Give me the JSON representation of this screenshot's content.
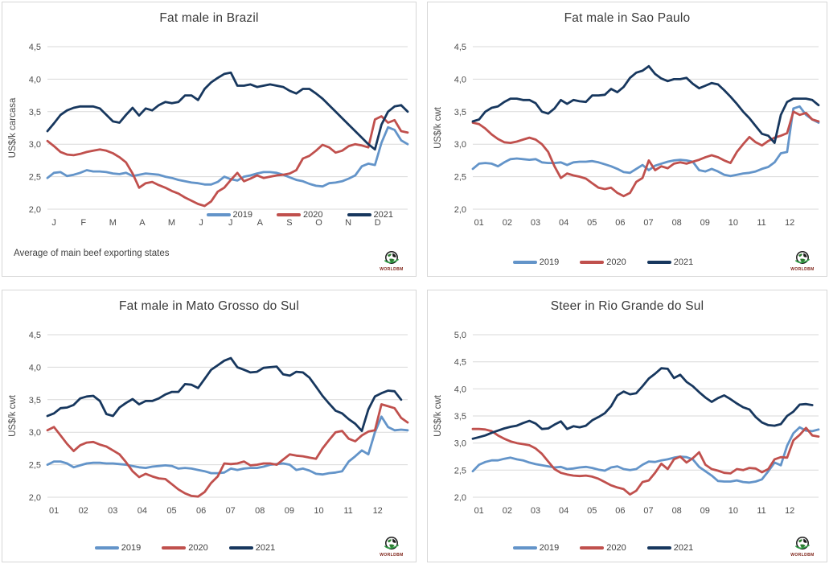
{
  "ui": {
    "logo_text": "WORLDBM"
  },
  "style": {
    "grid_color": "#d9d9d9",
    "axis_text_color": "#4d4d4d",
    "title_color": "#3a3a3a",
    "panel_border": "#d7d7d7",
    "series_colors": {
      "2019": "#6394C9",
      "2020": "#C0504D",
      "2021": "#17375E"
    }
  },
  "chart_data": [
    {
      "type": "line",
      "title": "Fat male in Brazil",
      "ylabel": "US$/k carcasa",
      "footnote": "Average of main beef exporting states",
      "y_min": 2.0,
      "y_max": 4.5,
      "grid": true,
      "legend_position": "inside-bottom-right",
      "y_ticks": [
        {
          "value": 4.5,
          "label": "4,5"
        },
        {
          "value": 4.0,
          "label": "4,0"
        },
        {
          "value": 3.5,
          "label": "3,5"
        },
        {
          "value": 3.0,
          "label": "3,0"
        },
        {
          "value": 2.5,
          "label": "2,5"
        },
        {
          "value": 2.0,
          "label": "2,0"
        }
      ],
      "x_labels": [
        "J",
        "F",
        "M",
        "A",
        "M",
        "J",
        "J",
        "A",
        "S",
        "O",
        "N",
        "D"
      ],
      "series": [
        {
          "name": "2019",
          "color": "#6394C9",
          "values": [
            2.48,
            2.56,
            2.57,
            2.51,
            2.53,
            2.56,
            2.6,
            2.58,
            2.58,
            2.57,
            2.55,
            2.54,
            2.56,
            2.51,
            2.53,
            2.55,
            2.54,
            2.53,
            2.5,
            2.48,
            2.45,
            2.43,
            2.41,
            2.4,
            2.38,
            2.38,
            2.42,
            2.5,
            2.46,
            2.44,
            2.5,
            2.52,
            2.55,
            2.57,
            2.57,
            2.56,
            2.53,
            2.49,
            2.45,
            2.43,
            2.39,
            2.36,
            2.35,
            2.4,
            2.41,
            2.43,
            2.47,
            2.52,
            2.66,
            2.7,
            2.68,
            3.02,
            3.26,
            3.22,
            3.06,
            3.0
          ]
        },
        {
          "name": "2020",
          "color": "#C0504D",
          "values": [
            3.05,
            2.97,
            2.88,
            2.84,
            2.83,
            2.85,
            2.88,
            2.9,
            2.92,
            2.9,
            2.86,
            2.8,
            2.72,
            2.55,
            2.33,
            2.4,
            2.42,
            2.37,
            2.33,
            2.28,
            2.24,
            2.18,
            2.13,
            2.08,
            2.05,
            2.12,
            2.27,
            2.33,
            2.45,
            2.56,
            2.43,
            2.47,
            2.52,
            2.48,
            2.5,
            2.52,
            2.53,
            2.55,
            2.6,
            2.78,
            2.82,
            2.9,
            2.99,
            2.95,
            2.87,
            2.9,
            2.97,
            3.0,
            2.98,
            2.95,
            3.38,
            3.43,
            3.33,
            3.37,
            3.2,
            3.18
          ]
        },
        {
          "name": "2021",
          "color": "#17375E",
          "values": [
            3.2,
            3.32,
            3.45,
            3.52,
            3.56,
            3.58,
            3.58,
            3.58,
            3.55,
            3.45,
            3.35,
            3.33,
            3.45,
            3.56,
            3.44,
            3.55,
            3.52,
            3.6,
            3.65,
            3.63,
            3.65,
            3.75,
            3.75,
            3.68,
            3.85,
            3.95,
            4.02,
            4.08,
            4.1,
            3.9,
            3.9,
            3.92,
            3.88,
            3.9,
            3.92,
            3.9,
            3.88,
            3.82,
            3.78,
            3.85,
            3.85,
            3.78,
            3.7,
            3.6,
            3.5,
            3.4,
            3.3,
            3.2,
            3.1,
            3.0,
            2.92,
            3.3,
            3.5,
            3.58,
            3.6,
            3.5
          ]
        }
      ]
    },
    {
      "type": "line",
      "title": "Fat male in Sao Paulo",
      "ylabel": "US$/k cwt",
      "footnote": "",
      "y_min": 2.0,
      "y_max": 4.5,
      "grid": true,
      "legend_position": "bottom-center",
      "y_ticks": [
        {
          "value": 4.5,
          "label": "4,5"
        },
        {
          "value": 4.0,
          "label": "4,0"
        },
        {
          "value": 3.5,
          "label": "3,5"
        },
        {
          "value": 3.0,
          "label": "3,0"
        },
        {
          "value": 2.5,
          "label": "2,5"
        },
        {
          "value": 2.0,
          "label": "2,0"
        }
      ],
      "x_labels": [
        "01",
        "02",
        "03",
        "04",
        "05",
        "06",
        "07",
        "08",
        "09",
        "10",
        "11",
        "12"
      ],
      "series": [
        {
          "name": "2019",
          "color": "#6394C9",
          "values": [
            2.62,
            2.7,
            2.71,
            2.7,
            2.66,
            2.72,
            2.77,
            2.78,
            2.77,
            2.76,
            2.77,
            2.72,
            2.71,
            2.71,
            2.72,
            2.68,
            2.72,
            2.73,
            2.73,
            2.74,
            2.72,
            2.69,
            2.66,
            2.62,
            2.57,
            2.56,
            2.62,
            2.68,
            2.6,
            2.67,
            2.7,
            2.73,
            2.75,
            2.76,
            2.75,
            2.73,
            2.6,
            2.58,
            2.62,
            2.58,
            2.53,
            2.51,
            2.53,
            2.55,
            2.56,
            2.58,
            2.62,
            2.65,
            2.72,
            2.86,
            2.88,
            3.55,
            3.58,
            3.45,
            3.38,
            3.33
          ]
        },
        {
          "name": "2020",
          "color": "#C0504D",
          "values": [
            3.33,
            3.31,
            3.24,
            3.15,
            3.08,
            3.03,
            3.02,
            3.04,
            3.07,
            3.1,
            3.07,
            3.0,
            2.88,
            2.66,
            2.48,
            2.55,
            2.52,
            2.5,
            2.47,
            2.4,
            2.33,
            2.31,
            2.33,
            2.25,
            2.2,
            2.25,
            2.42,
            2.48,
            2.75,
            2.6,
            2.66,
            2.63,
            2.7,
            2.72,
            2.7,
            2.73,
            2.76,
            2.8,
            2.83,
            2.8,
            2.75,
            2.71,
            2.88,
            3.0,
            3.11,
            3.03,
            2.98,
            3.05,
            3.1,
            3.13,
            3.17,
            3.5,
            3.45,
            3.48,
            3.38,
            3.35
          ]
        },
        {
          "name": "2021",
          "color": "#17375E",
          "values": [
            3.35,
            3.38,
            3.5,
            3.56,
            3.58,
            3.65,
            3.7,
            3.7,
            3.68,
            3.68,
            3.63,
            3.5,
            3.47,
            3.55,
            3.68,
            3.62,
            3.68,
            3.66,
            3.65,
            3.75,
            3.75,
            3.76,
            3.85,
            3.8,
            3.88,
            4.02,
            4.1,
            4.13,
            4.2,
            4.08,
            4.01,
            3.97,
            4.0,
            4.0,
            4.02,
            3.93,
            3.86,
            3.9,
            3.94,
            3.92,
            3.83,
            3.73,
            3.62,
            3.5,
            3.4,
            3.28,
            3.16,
            3.13,
            3.02,
            3.45,
            3.65,
            3.7,
            3.7,
            3.7,
            3.68,
            3.6
          ]
        }
      ]
    },
    {
      "type": "line",
      "title": "Fat male in Mato Grosso do Sul",
      "ylabel": "US$/k cwt",
      "footnote": "",
      "y_min": 2.0,
      "y_max": 4.5,
      "grid": true,
      "legend_position": "bottom-center",
      "y_ticks": [
        {
          "value": 4.5,
          "label": "4,5"
        },
        {
          "value": 4.0,
          "label": "4,0"
        },
        {
          "value": 3.5,
          "label": "3,5"
        },
        {
          "value": 3.0,
          "label": "3,0"
        },
        {
          "value": 2.5,
          "label": "2,5"
        },
        {
          "value": 2.0,
          "label": "2,0"
        }
      ],
      "x_labels": [
        "01",
        "02",
        "03",
        "04",
        "05",
        "06",
        "07",
        "08",
        "09",
        "10",
        "11",
        "12"
      ],
      "series": [
        {
          "name": "2019",
          "color": "#6394C9",
          "values": [
            2.5,
            2.55,
            2.55,
            2.52,
            2.46,
            2.49,
            2.52,
            2.53,
            2.53,
            2.52,
            2.52,
            2.51,
            2.5,
            2.48,
            2.46,
            2.45,
            2.47,
            2.48,
            2.49,
            2.48,
            2.44,
            2.45,
            2.44,
            2.42,
            2.4,
            2.37,
            2.37,
            2.38,
            2.44,
            2.42,
            2.44,
            2.45,
            2.45,
            2.47,
            2.5,
            2.51,
            2.52,
            2.5,
            2.42,
            2.44,
            2.41,
            2.36,
            2.35,
            2.37,
            2.38,
            2.4,
            2.55,
            2.63,
            2.72,
            2.66,
            3.0,
            3.24,
            3.08,
            3.03,
            3.04,
            3.03
          ]
        },
        {
          "name": "2020",
          "color": "#C0504D",
          "values": [
            3.03,
            3.08,
            2.95,
            2.82,
            2.71,
            2.8,
            2.84,
            2.85,
            2.81,
            2.78,
            2.72,
            2.66,
            2.54,
            2.4,
            2.31,
            2.36,
            2.32,
            2.29,
            2.28,
            2.2,
            2.12,
            2.06,
            2.02,
            2.01,
            2.08,
            2.22,
            2.32,
            2.52,
            2.51,
            2.52,
            2.55,
            2.49,
            2.5,
            2.52,
            2.52,
            2.5,
            2.58,
            2.66,
            2.64,
            2.63,
            2.61,
            2.59,
            2.75,
            2.88,
            3.0,
            3.02,
            2.9,
            2.86,
            2.95,
            3.01,
            3.03,
            3.43,
            3.4,
            3.37,
            3.22,
            3.15
          ]
        },
        {
          "name": "2021",
          "color": "#17375E",
          "values": [
            3.25,
            3.29,
            3.37,
            3.38,
            3.42,
            3.52,
            3.55,
            3.56,
            3.48,
            3.28,
            3.25,
            3.38,
            3.45,
            3.51,
            3.43,
            3.48,
            3.48,
            3.52,
            3.58,
            3.62,
            3.62,
            3.74,
            3.73,
            3.68,
            3.82,
            3.96,
            4.03,
            4.1,
            4.14,
            4.0,
            3.96,
            3.92,
            3.93,
            3.99,
            4.0,
            4.01,
            3.89,
            3.87,
            3.93,
            3.92,
            3.84,
            3.7,
            3.56,
            3.44,
            3.33,
            3.29,
            3.2,
            3.13,
            3.02,
            3.35,
            3.55,
            3.6,
            3.64,
            3.63,
            3.5,
            null
          ]
        }
      ]
    },
    {
      "type": "line",
      "title": "Steer in Rio Grande do Sul",
      "ylabel": "US$/k cwt",
      "footnote": "",
      "y_min": 2.0,
      "y_max": 5.0,
      "grid": true,
      "legend_position": "bottom-center",
      "y_ticks": [
        {
          "value": 5.0,
          "label": "5,0"
        },
        {
          "value": 4.5,
          "label": "4,5"
        },
        {
          "value": 4.0,
          "label": "4,0"
        },
        {
          "value": 3.5,
          "label": "3,5"
        },
        {
          "value": 3.0,
          "label": "3,0"
        },
        {
          "value": 2.5,
          "label": "2,5"
        },
        {
          "value": 2.0,
          "label": "2,0"
        }
      ],
      "x_labels": [
        "01",
        "02",
        "03",
        "04",
        "05",
        "06",
        "07",
        "08",
        "09",
        "10",
        "11",
        "12"
      ],
      "series": [
        {
          "name": "2019",
          "color": "#6394C9",
          "values": [
            2.48,
            2.6,
            2.65,
            2.68,
            2.68,
            2.71,
            2.73,
            2.7,
            2.68,
            2.64,
            2.61,
            2.59,
            2.57,
            2.55,
            2.56,
            2.52,
            2.53,
            2.55,
            2.56,
            2.54,
            2.51,
            2.49,
            2.55,
            2.57,
            2.52,
            2.5,
            2.52,
            2.6,
            2.66,
            2.65,
            2.68,
            2.7,
            2.73,
            2.75,
            2.74,
            2.7,
            2.56,
            2.48,
            2.4,
            2.3,
            2.29,
            2.29,
            2.31,
            2.28,
            2.27,
            2.29,
            2.33,
            2.48,
            2.64,
            2.59,
            2.95,
            3.18,
            3.29,
            3.23,
            3.22,
            3.25
          ]
        },
        {
          "name": "2020",
          "color": "#C0504D",
          "values": [
            3.26,
            3.26,
            3.25,
            3.22,
            3.14,
            3.08,
            3.03,
            3.0,
            2.98,
            2.96,
            2.9,
            2.8,
            2.66,
            2.52,
            2.45,
            2.42,
            2.4,
            2.39,
            2.4,
            2.38,
            2.34,
            2.28,
            2.22,
            2.18,
            2.15,
            2.05,
            2.12,
            2.28,
            2.31,
            2.45,
            2.62,
            2.52,
            2.7,
            2.75,
            2.64,
            2.72,
            2.83,
            2.6,
            2.52,
            2.49,
            2.45,
            2.44,
            2.52,
            2.5,
            2.54,
            2.53,
            2.46,
            2.52,
            2.7,
            2.74,
            2.73,
            3.05,
            3.15,
            3.28,
            3.14,
            3.12
          ]
        },
        {
          "name": "2021",
          "color": "#17375E",
          "values": [
            3.08,
            3.11,
            3.14,
            3.19,
            3.23,
            3.27,
            3.3,
            3.32,
            3.37,
            3.41,
            3.36,
            3.26,
            3.27,
            3.34,
            3.4,
            3.26,
            3.31,
            3.29,
            3.32,
            3.42,
            3.48,
            3.55,
            3.68,
            3.88,
            3.95,
            3.9,
            3.92,
            4.05,
            4.19,
            4.28,
            4.38,
            4.37,
            4.2,
            4.26,
            4.13,
            4.05,
            3.94,
            3.84,
            3.76,
            3.83,
            3.88,
            3.81,
            3.73,
            3.66,
            3.62,
            3.48,
            3.38,
            3.33,
            3.32,
            3.35,
            3.5,
            3.58,
            3.71,
            3.72,
            3.7,
            null
          ]
        }
      ]
    }
  ]
}
